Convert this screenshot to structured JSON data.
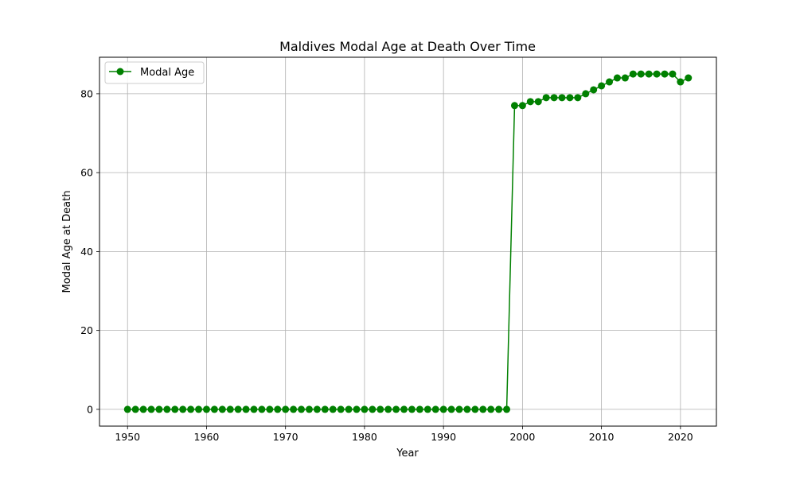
{
  "chart_data": {
    "type": "line",
    "title": "Maldives Modal Age at Death Over Time",
    "xlabel": "Year",
    "ylabel": "Modal Age at Death",
    "xlim": [
      1946.45,
      2024.55
    ],
    "ylim": [
      -4.25,
      89.25
    ],
    "x_ticks": [
      1950,
      1960,
      1970,
      1980,
      1990,
      2000,
      2010,
      2020
    ],
    "y_ticks": [
      0,
      20,
      40,
      60,
      80
    ],
    "grid": true,
    "legend_position": "top-left",
    "series": [
      {
        "name": "Modal Age",
        "color": "#008000",
        "marker": "circle",
        "x": [
          1950,
          1951,
          1952,
          1953,
          1954,
          1955,
          1956,
          1957,
          1958,
          1959,
          1960,
          1961,
          1962,
          1963,
          1964,
          1965,
          1966,
          1967,
          1968,
          1969,
          1970,
          1971,
          1972,
          1973,
          1974,
          1975,
          1976,
          1977,
          1978,
          1979,
          1980,
          1981,
          1982,
          1983,
          1984,
          1985,
          1986,
          1987,
          1988,
          1989,
          1990,
          1991,
          1992,
          1993,
          1994,
          1995,
          1996,
          1997,
          1998,
          1999,
          2000,
          2001,
          2002,
          2003,
          2004,
          2005,
          2006,
          2007,
          2008,
          2009,
          2010,
          2011,
          2012,
          2013,
          2014,
          2015,
          2016,
          2017,
          2018,
          2019,
          2020,
          2021
        ],
        "y": [
          0,
          0,
          0,
          0,
          0,
          0,
          0,
          0,
          0,
          0,
          0,
          0,
          0,
          0,
          0,
          0,
          0,
          0,
          0,
          0,
          0,
          0,
          0,
          0,
          0,
          0,
          0,
          0,
          0,
          0,
          0,
          0,
          0,
          0,
          0,
          0,
          0,
          0,
          0,
          0,
          0,
          0,
          0,
          0,
          0,
          0,
          0,
          0,
          0,
          77,
          77,
          78,
          78,
          79,
          79,
          79,
          79,
          79,
          80,
          81,
          82,
          83,
          84,
          84,
          85,
          85,
          85,
          85,
          85,
          85,
          83,
          84
        ]
      }
    ]
  }
}
